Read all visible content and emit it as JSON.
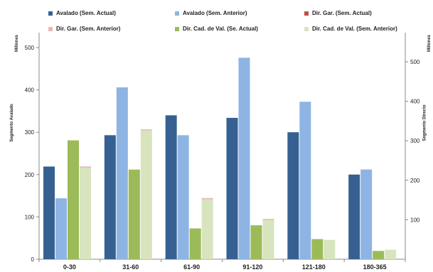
{
  "legend": [
    {
      "label": "Avalado (Sem. Actual)",
      "color": "#376092"
    },
    {
      "label": "Avalado (Sem. Anterior)",
      "color": "#8EB4E3"
    },
    {
      "label": "Dir. Gar. (Sem. Actual)",
      "color": "#C0504D"
    },
    {
      "label": "Dir. Gar. (Sem. Anterior)",
      "color": "#E6B9B8"
    },
    {
      "label": "Dir. Cad. de Val. (Se. Actual)",
      "color": "#9BBB59"
    },
    {
      "label": "Dir. Cad. de Val. (Sem. Anterior)",
      "color": "#D7E4BD"
    }
  ],
  "axes": {
    "left_unit": "Millones",
    "left_title": "Segmento Avalado",
    "right_unit": "Millones",
    "right_title": "Segmento Directo"
  },
  "chart_data": {
    "type": "bar",
    "stacked_pairs": true,
    "categories": [
      "0-30",
      "31-60",
      "61-90",
      "91-120",
      "121-180",
      "180-365"
    ],
    "ylim_left": [
      0,
      530
    ],
    "yticks_left": [
      0,
      100,
      200,
      300,
      400,
      500
    ],
    "ylim_right": [
      0,
      575
    ],
    "yticks_right": [
      100,
      200,
      300,
      400,
      500
    ],
    "series": [
      {
        "name": "Avalado (Sem. Actual)",
        "axis": "left",
        "color": "#376092",
        "values": [
          219,
          293,
          340,
          334,
          300,
          200
        ]
      },
      {
        "name": "Avalado (Sem. Anterior)",
        "axis": "left",
        "color": "#8EB4E3",
        "values": [
          144,
          406,
          293,
          476,
          372,
          212
        ]
      },
      {
        "name": "Dir. Gar. (Sem. Actual)",
        "axis": "right",
        "color": "#C0504D",
        "values": [
          0,
          0,
          0,
          0,
          0,
          0
        ]
      },
      {
        "name": "Dir. Gar. (Sem. Anterior)",
        "axis": "right",
        "color": "#E6B9B8",
        "values": [
          3,
          3,
          3,
          3,
          0,
          0
        ]
      },
      {
        "name": "Dir. Cad. de Val. (Se. Actual)",
        "axis": "right",
        "color": "#9BBB59",
        "values": [
          301,
          227,
          78,
          86,
          51,
          21
        ]
      },
      {
        "name": "Dir. Cad. de Val. (Sem. Anterior)",
        "axis": "right",
        "color": "#D7E4BD",
        "values": [
          232,
          326,
          152,
          99,
          49,
          24
        ]
      }
    ]
  }
}
